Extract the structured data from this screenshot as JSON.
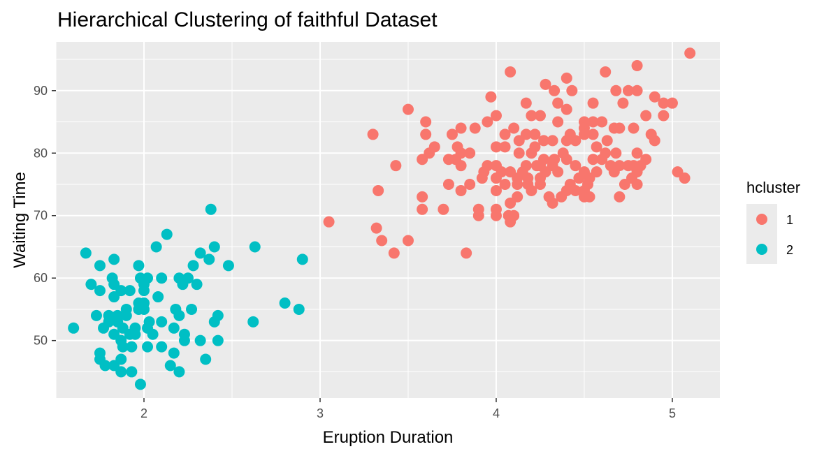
{
  "chart_data": {
    "type": "scatter",
    "title": "Hierarchical Clustering of faithful Dataset",
    "xlabel": "Eruption Duration",
    "ylabel": "Waiting Time",
    "xlim": [
      1.5,
      5.27
    ],
    "ylim": [
      40.8,
      97.8
    ],
    "x_ticks": [
      2,
      3,
      4,
      5
    ],
    "y_ticks": [
      50,
      60,
      70,
      80,
      90
    ],
    "grid": true,
    "legend": {
      "title": "hcluster",
      "position": "right"
    },
    "series": [
      {
        "name": "1",
        "color": "#F8766D",
        "points": [
          [
            5.1,
            96
          ],
          [
            4.08,
            93
          ],
          [
            4.62,
            93
          ],
          [
            4.4,
            92
          ],
          [
            4.8,
            94
          ],
          [
            4.28,
            91
          ],
          [
            4.17,
            88
          ],
          [
            3.97,
            89
          ],
          [
            4.33,
            90
          ],
          [
            4.43,
            90
          ],
          [
            4.68,
            90
          ],
          [
            4.75,
            90
          ],
          [
            4.8,
            90
          ],
          [
            4.9,
            89
          ],
          [
            5.0,
            88
          ],
          [
            4.95,
            88
          ],
          [
            4.55,
            88
          ],
          [
            4.35,
            88
          ],
          [
            4.72,
            88
          ],
          [
            4.4,
            87
          ],
          [
            4.2,
            86
          ],
          [
            4.25,
            86
          ],
          [
            4.85,
            86
          ],
          [
            3.5,
            87
          ],
          [
            4.0,
            86
          ],
          [
            4.95,
            86
          ],
          [
            4.6,
            85
          ],
          [
            4.55,
            85
          ],
          [
            4.5,
            85
          ],
          [
            4.35,
            85
          ],
          [
            3.6,
            85
          ],
          [
            3.95,
            85
          ],
          [
            4.5,
            84
          ],
          [
            4.1,
            84
          ],
          [
            4.78,
            84
          ],
          [
            3.88,
            84
          ],
          [
            3.8,
            84
          ],
          [
            4.67,
            84
          ],
          [
            4.7,
            84
          ],
          [
            4.55,
            83
          ],
          [
            3.3,
            83
          ],
          [
            3.6,
            83
          ],
          [
            3.75,
            83
          ],
          [
            4.05,
            83
          ],
          [
            4.17,
            83
          ],
          [
            4.22,
            83
          ],
          [
            4.42,
            83
          ],
          [
            4.5,
            83
          ],
          [
            4.88,
            83
          ],
          [
            3.65,
            81
          ],
          [
            3.78,
            81
          ],
          [
            4.0,
            81
          ],
          [
            4.4,
            82
          ],
          [
            4.45,
            82
          ],
          [
            4.9,
            82
          ],
          [
            4.63,
            82
          ],
          [
            4.32,
            82
          ],
          [
            4.27,
            82
          ],
          [
            4.13,
            82
          ],
          [
            3.77,
            79
          ],
          [
            3.73,
            79
          ],
          [
            3.8,
            80
          ],
          [
            3.85,
            80
          ],
          [
            4.05,
            81
          ],
          [
            4.22,
            81
          ],
          [
            4.38,
            80
          ],
          [
            4.57,
            81
          ],
          [
            4.62,
            80
          ],
          [
            4.68,
            80
          ],
          [
            4.8,
            80
          ],
          [
            4.85,
            79
          ],
          [
            4.13,
            80
          ],
          [
            3.58,
            79
          ],
          [
            3.62,
            80
          ],
          [
            4.2,
            80
          ],
          [
            4.27,
            79
          ],
          [
            4.33,
            79
          ],
          [
            4.4,
            79
          ],
          [
            4.55,
            79
          ],
          [
            4.6,
            79
          ],
          [
            4.17,
            78
          ],
          [
            3.43,
            78
          ],
          [
            3.8,
            78
          ],
          [
            3.95,
            78
          ],
          [
            4.0,
            78
          ],
          [
            4.23,
            78
          ],
          [
            4.25,
            78
          ],
          [
            4.32,
            78
          ],
          [
            4.45,
            78
          ],
          [
            4.65,
            78
          ],
          [
            4.7,
            78
          ],
          [
            4.75,
            78
          ],
          [
            4.78,
            78
          ],
          [
            4.82,
            78
          ],
          [
            3.93,
            77
          ],
          [
            4.03,
            77
          ],
          [
            4.08,
            77
          ],
          [
            4.15,
            77
          ],
          [
            4.28,
            77
          ],
          [
            4.35,
            77
          ],
          [
            4.5,
            77
          ],
          [
            4.57,
            77
          ],
          [
            4.67,
            77
          ],
          [
            4.8,
            77
          ],
          [
            5.03,
            77
          ],
          [
            3.92,
            76
          ],
          [
            4.0,
            76
          ],
          [
            4.12,
            76
          ],
          [
            4.18,
            76
          ],
          [
            4.25,
            76
          ],
          [
            4.47,
            76
          ],
          [
            4.53,
            76
          ],
          [
            4.77,
            76
          ],
          [
            5.07,
            76
          ],
          [
            3.73,
            75
          ],
          [
            3.85,
            75
          ],
          [
            4.05,
            75
          ],
          [
            4.12,
            75
          ],
          [
            4.18,
            75
          ],
          [
            4.25,
            75
          ],
          [
            4.42,
            75
          ],
          [
            4.52,
            75
          ],
          [
            4.73,
            75
          ],
          [
            4.8,
            75
          ],
          [
            3.8,
            74
          ],
          [
            4.0,
            74
          ],
          [
            4.2,
            74
          ],
          [
            4.4,
            74
          ],
          [
            4.45,
            74
          ],
          [
            4.5,
            74
          ],
          [
            3.33,
            74
          ],
          [
            4.12,
            73
          ],
          [
            4.3,
            73
          ],
          [
            4.37,
            73
          ],
          [
            4.5,
            73
          ],
          [
            4.53,
            73
          ],
          [
            4.7,
            73
          ],
          [
            3.58,
            73
          ],
          [
            4.08,
            72
          ],
          [
            4.32,
            72
          ],
          [
            3.58,
            71
          ],
          [
            3.7,
            71
          ],
          [
            3.9,
            71
          ],
          [
            4.0,
            71
          ],
          [
            3.9,
            70
          ],
          [
            4.0,
            70
          ],
          [
            4.07,
            70
          ],
          [
            4.1,
            70
          ],
          [
            3.05,
            69
          ],
          [
            4.08,
            69
          ],
          [
            3.32,
            68
          ],
          [
            3.35,
            66
          ],
          [
            3.5,
            66
          ],
          [
            3.42,
            64
          ],
          [
            3.83,
            64
          ]
        ]
      },
      {
        "name": "2",
        "color": "#00BFC4",
        "points": [
          [
            1.6,
            52
          ],
          [
            1.67,
            64
          ],
          [
            1.7,
            59
          ],
          [
            1.73,
            54
          ],
          [
            1.75,
            58
          ],
          [
            1.75,
            62
          ],
          [
            1.75,
            48
          ],
          [
            1.75,
            47
          ],
          [
            1.77,
            52
          ],
          [
            1.78,
            46
          ],
          [
            1.8,
            53
          ],
          [
            1.8,
            54
          ],
          [
            1.82,
            60
          ],
          [
            1.83,
            63
          ],
          [
            1.83,
            59
          ],
          [
            1.83,
            57
          ],
          [
            1.83,
            51
          ],
          [
            1.83,
            46
          ],
          [
            1.85,
            54
          ],
          [
            1.85,
            53
          ],
          [
            1.87,
            58
          ],
          [
            1.87,
            50
          ],
          [
            1.87,
            47
          ],
          [
            1.87,
            45
          ],
          [
            1.88,
            52
          ],
          [
            1.88,
            49
          ],
          [
            1.9,
            55
          ],
          [
            1.9,
            54
          ],
          [
            1.92,
            58
          ],
          [
            1.92,
            51
          ],
          [
            1.93,
            49
          ],
          [
            1.93,
            45
          ],
          [
            1.95,
            52
          ],
          [
            1.95,
            51
          ],
          [
            1.97,
            62
          ],
          [
            1.97,
            56
          ],
          [
            1.97,
            55
          ],
          [
            1.98,
            60
          ],
          [
            2.0,
            59
          ],
          [
            2.0,
            56
          ],
          [
            2.0,
            55
          ],
          [
            1.98,
            43
          ],
          [
            2.0,
            58
          ],
          [
            2.02,
            49
          ],
          [
            2.02,
            52
          ],
          [
            2.02,
            60
          ],
          [
            2.03,
            53
          ],
          [
            2.05,
            51
          ],
          [
            2.07,
            65
          ],
          [
            2.08,
            57
          ],
          [
            2.1,
            60
          ],
          [
            2.1,
            53
          ],
          [
            2.1,
            49
          ],
          [
            2.13,
            67
          ],
          [
            2.15,
            46
          ],
          [
            2.17,
            52
          ],
          [
            2.17,
            48
          ],
          [
            2.18,
            55
          ],
          [
            2.2,
            60
          ],
          [
            2.2,
            54
          ],
          [
            2.2,
            45
          ],
          [
            2.22,
            59
          ],
          [
            2.23,
            51
          ],
          [
            2.23,
            50
          ],
          [
            2.25,
            60
          ],
          [
            2.27,
            55
          ],
          [
            2.28,
            62
          ],
          [
            2.3,
            59
          ],
          [
            2.32,
            64
          ],
          [
            2.32,
            50
          ],
          [
            2.35,
            47
          ],
          [
            2.37,
            63
          ],
          [
            2.38,
            71
          ],
          [
            2.4,
            65
          ],
          [
            2.4,
            53
          ],
          [
            2.42,
            54
          ],
          [
            2.42,
            50
          ],
          [
            2.48,
            62
          ],
          [
            2.62,
            53
          ],
          [
            2.63,
            65
          ],
          [
            2.8,
            56
          ],
          [
            2.88,
            55
          ],
          [
            2.9,
            63
          ]
        ]
      }
    ]
  }
}
